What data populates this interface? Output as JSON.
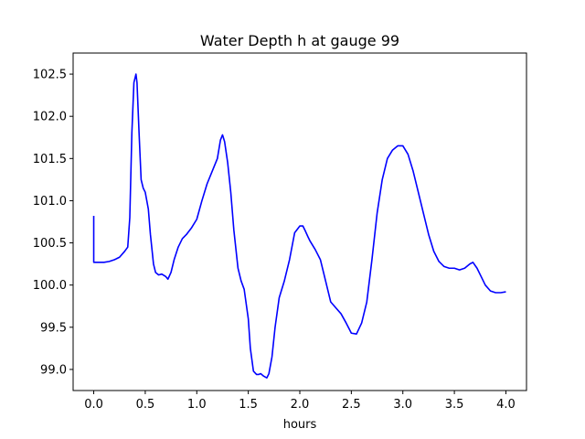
{
  "chart_data": {
    "type": "line",
    "title": "Water Depth h at gauge 99",
    "xlabel": "hours",
    "ylabel": "",
    "xlim": [
      -0.2,
      4.2
    ],
    "ylim": [
      98.75,
      102.75
    ],
    "xticks": [
      0.0,
      0.5,
      1.0,
      1.5,
      2.0,
      2.5,
      3.0,
      3.5,
      4.0
    ],
    "xtick_labels": [
      "0.0",
      "0.5",
      "1.0",
      "1.5",
      "2.0",
      "2.5",
      "3.0",
      "3.5",
      "4.0"
    ],
    "yticks": [
      99.0,
      99.5,
      100.0,
      100.5,
      101.0,
      101.5,
      102.0,
      102.5
    ],
    "ytick_labels": [
      "99.0",
      "99.5",
      "100.0",
      "100.5",
      "101.0",
      "101.5",
      "102.0",
      "102.5"
    ],
    "grid": false,
    "series": [
      {
        "color": "#0000ff",
        "x": [
          0.0,
          0.0,
          0.05,
          0.1,
          0.15,
          0.2,
          0.25,
          0.3,
          0.33,
          0.35,
          0.37,
          0.39,
          0.41,
          0.42,
          0.44,
          0.46,
          0.48,
          0.5,
          0.53,
          0.55,
          0.58,
          0.6,
          0.63,
          0.66,
          0.7,
          0.72,
          0.75,
          0.78,
          0.82,
          0.86,
          0.9,
          0.95,
          1.0,
          1.05,
          1.1,
          1.15,
          1.2,
          1.23,
          1.25,
          1.27,
          1.3,
          1.33,
          1.36,
          1.4,
          1.43,
          1.46,
          1.5,
          1.52,
          1.55,
          1.58,
          1.6,
          1.62,
          1.65,
          1.68,
          1.7,
          1.73,
          1.76,
          1.8,
          1.85,
          1.9,
          1.95,
          2.0,
          2.03,
          2.05,
          2.08,
          2.1,
          2.15,
          2.2,
          2.25,
          2.3,
          2.35,
          2.4,
          2.45,
          2.5,
          2.55,
          2.6,
          2.65,
          2.7,
          2.75,
          2.8,
          2.85,
          2.9,
          2.95,
          3.0,
          3.05,
          3.1,
          3.15,
          3.2,
          3.25,
          3.3,
          3.35,
          3.4,
          3.45,
          3.5,
          3.55,
          3.6,
          3.65,
          3.68,
          3.72,
          3.76,
          3.8,
          3.85,
          3.9,
          3.95,
          4.0
        ],
        "y": [
          100.82,
          100.27,
          100.27,
          100.27,
          100.28,
          100.3,
          100.33,
          100.4,
          100.45,
          100.8,
          101.8,
          102.4,
          102.5,
          102.4,
          101.8,
          101.25,
          101.15,
          101.1,
          100.9,
          100.6,
          100.25,
          100.15,
          100.12,
          100.13,
          100.1,
          100.07,
          100.15,
          100.3,
          100.45,
          100.55,
          100.6,
          100.68,
          100.78,
          101.0,
          101.2,
          101.35,
          101.5,
          101.72,
          101.78,
          101.7,
          101.45,
          101.1,
          100.65,
          100.2,
          100.05,
          99.95,
          99.6,
          99.25,
          98.98,
          98.94,
          98.94,
          98.95,
          98.92,
          98.9,
          98.95,
          99.15,
          99.5,
          99.85,
          100.05,
          100.3,
          100.62,
          100.7,
          100.7,
          100.65,
          100.57,
          100.52,
          100.42,
          100.3,
          100.05,
          99.8,
          99.73,
          99.66,
          99.55,
          99.43,
          99.42,
          99.55,
          99.8,
          100.3,
          100.85,
          101.25,
          101.5,
          101.6,
          101.65,
          101.65,
          101.55,
          101.35,
          101.1,
          100.85,
          100.6,
          100.4,
          100.28,
          100.22,
          100.2,
          100.2,
          100.18,
          100.2,
          100.25,
          100.27,
          100.2,
          100.1,
          100.0,
          99.93,
          99.91,
          99.91,
          99.92
        ]
      }
    ]
  }
}
